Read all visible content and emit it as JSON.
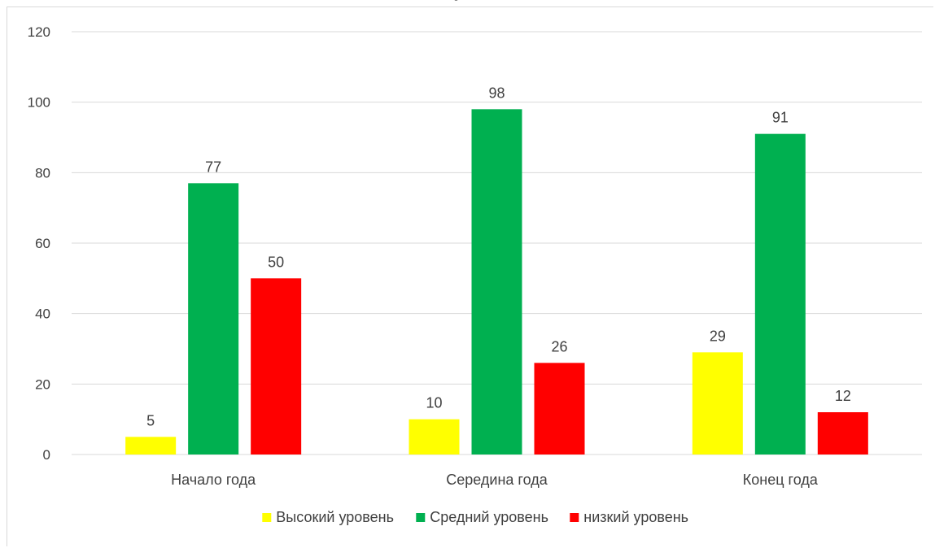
{
  "chart_data": {
    "type": "bar",
    "title": "",
    "title_fragment_visible": "у д",
    "categories": [
      "Начало года",
      "Середина года",
      "Конец года"
    ],
    "series": [
      {
        "name": "Высокий уровень",
        "color": "#ffff00",
        "values": [
          5,
          10,
          29
        ]
      },
      {
        "name": "Средний уровень",
        "color": "#00b050",
        "values": [
          77,
          98,
          91
        ]
      },
      {
        "name": "низкий уровень",
        "color": "#ff0000",
        "values": [
          50,
          26,
          12
        ]
      }
    ],
    "xlabel": "",
    "ylabel": "",
    "ylim": [
      0,
      120
    ],
    "yticks": [
      0,
      20,
      40,
      60,
      80,
      100,
      120
    ],
    "grid": true,
    "legend": "bottom",
    "data_labels": true
  }
}
